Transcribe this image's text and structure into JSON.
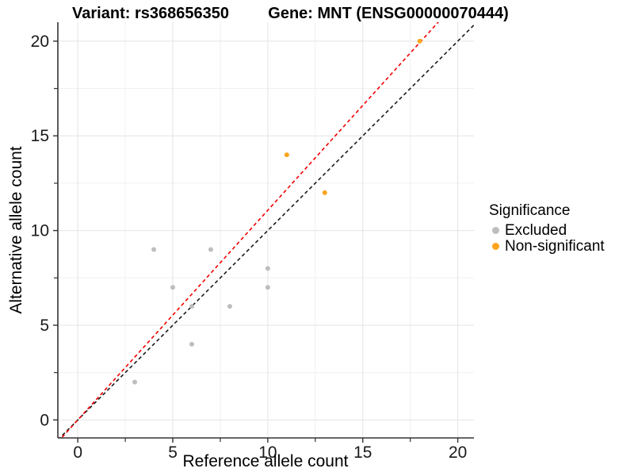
{
  "titles": {
    "variant": "Variant: rs368656350",
    "gene": "Gene: MNT (ENSG00000070444)"
  },
  "chart_data": {
    "type": "scatter",
    "xlabel": "Reference allele count",
    "ylabel": "Alternative allele count",
    "xlim": [
      -1.05,
      20.85
    ],
    "ylim": [
      -0.95,
      21.0
    ],
    "x_major_ticks": [
      0,
      5,
      10,
      15,
      20
    ],
    "x_minor_ticks": [
      2.5,
      7.5,
      12.5,
      17.5
    ],
    "y_major_ticks": [
      0,
      5,
      10,
      15,
      20
    ],
    "y_minor_ticks": [
      2.5,
      7.5,
      12.5,
      17.5
    ],
    "grid": "major+minor",
    "colors": {
      "excluded": "#BEBEBE",
      "non_significant": "#FBA51E",
      "identity_line": "#1A1A1A",
      "fit_line": "#F20000",
      "grid_major": "#E4E4E4",
      "grid_minor": "#F0F0F0",
      "axis": "#333333",
      "tick_label": "#1A1A1A"
    },
    "series": [
      {
        "name": "Excluded",
        "color_key": "excluded",
        "points": [
          [
            3,
            2
          ],
          [
            4,
            9
          ],
          [
            5,
            7
          ],
          [
            6,
            4
          ],
          [
            6,
            6
          ],
          [
            7,
            9
          ],
          [
            8,
            6
          ],
          [
            10,
            7
          ],
          [
            10,
            8
          ]
        ]
      },
      {
        "name": "Non-significant",
        "color_key": "non_significant",
        "points": [
          [
            11,
            14
          ],
          [
            13,
            12
          ],
          [
            18,
            20
          ]
        ]
      }
    ],
    "lines": [
      {
        "name": "identity-line",
        "color_key": "identity_line",
        "slope": 1.0,
        "intercept": 0
      },
      {
        "name": "fit-line",
        "color_key": "fit_line",
        "slope": 1.107,
        "intercept": 0
      }
    ],
    "legend": {
      "title": "Significance",
      "position": "right",
      "entries": [
        {
          "label": "Excluded",
          "color_key": "excluded"
        },
        {
          "label": "Non-significant",
          "color_key": "non_significant"
        }
      ]
    }
  }
}
